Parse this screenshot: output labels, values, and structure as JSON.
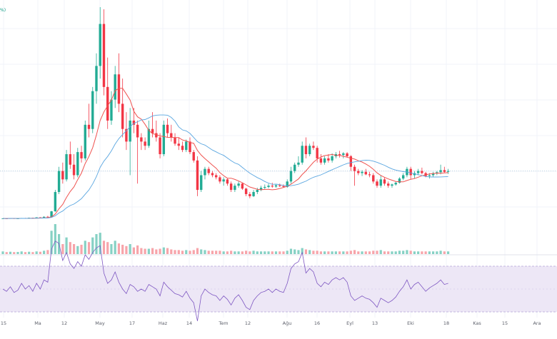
{
  "pct_badge": "%)",
  "colors": {
    "up": "#22ab94",
    "down": "#f23645",
    "vol_up": "#86d1c4",
    "vol_down": "#f7a4aa",
    "ma_fast": "#ef5350",
    "ma_slow": "#5aa6e0",
    "rsi_line": "#7e57c2",
    "rsi_band": "#ede7f6",
    "grid": "#f0f3fa",
    "badge": "#089981"
  },
  "chart_data": {
    "type": "candlestick",
    "title": "",
    "x_axis_labels": [
      "15",
      "Ma",
      "12",
      "May",
      "17",
      "Haz",
      "14",
      "Tem",
      "12",
      "Ağu",
      "16",
      "Eyl",
      "13",
      "Eki",
      "18",
      "Kas",
      "15",
      "Ara"
    ],
    "candles": [
      [
        0.27,
        0.275,
        0.265,
        0.27
      ],
      [
        0.27,
        0.275,
        0.262,
        0.268
      ],
      [
        0.268,
        0.28,
        0.265,
        0.276
      ],
      [
        0.276,
        0.278,
        0.26,
        0.265
      ],
      [
        0.265,
        0.272,
        0.258,
        0.27
      ],
      [
        0.27,
        0.282,
        0.266,
        0.279
      ],
      [
        0.279,
        0.285,
        0.27,
        0.274
      ],
      [
        0.274,
        0.29,
        0.272,
        0.286
      ],
      [
        0.286,
        0.288,
        0.276,
        0.28
      ],
      [
        0.28,
        0.3,
        0.278,
        0.296
      ],
      [
        0.296,
        0.3,
        0.284,
        0.29
      ],
      [
        0.29,
        0.32,
        0.286,
        0.31
      ],
      [
        0.31,
        0.33,
        0.3,
        0.305
      ],
      [
        0.305,
        0.45,
        0.3,
        0.44
      ],
      [
        0.44,
        0.95,
        0.43,
        0.9
      ],
      [
        0.9,
        1.5,
        0.85,
        1.4
      ],
      [
        1.4,
        1.6,
        1.1,
        1.2
      ],
      [
        1.2,
        1.9,
        1.15,
        1.8
      ],
      [
        1.8,
        2.1,
        1.45,
        1.55
      ],
      [
        1.55,
        1.8,
        1.2,
        1.3
      ],
      [
        1.3,
        1.95,
        1.25,
        1.85
      ],
      [
        1.85,
        2.0,
        1.6,
        1.7
      ],
      [
        1.7,
        2.6,
        1.65,
        2.5
      ],
      [
        2.5,
        3.0,
        2.2,
        2.4
      ],
      [
        2.4,
        3.4,
        2.3,
        3.3
      ],
      [
        3.3,
        4.2,
        3.0,
        3.9
      ],
      [
        3.9,
        5.3,
        3.6,
        4.9
      ],
      [
        4.9,
        5.25,
        3.2,
        3.4
      ],
      [
        3.4,
        4.1,
        2.4,
        2.6
      ],
      [
        2.6,
        3.3,
        2.5,
        3.1
      ],
      [
        3.1,
        3.9,
        2.9,
        3.7
      ],
      [
        3.7,
        4.2,
        2.8,
        3.0
      ],
      [
        3.0,
        3.6,
        2.2,
        2.4
      ],
      [
        2.4,
        2.8,
        1.9,
        2.1
      ],
      [
        2.1,
        2.9,
        1.3,
        2.6
      ],
      [
        2.6,
        2.9,
        2.3,
        2.5
      ],
      [
        2.5,
        2.6,
        1.1,
        2.2
      ],
      [
        2.2,
        2.3,
        1.9,
        2.1
      ],
      [
        2.1,
        2.2,
        1.9,
        2.0
      ],
      [
        2.0,
        2.6,
        1.95,
        2.4
      ],
      [
        2.4,
        2.8,
        2.2,
        2.3
      ],
      [
        2.3,
        2.6,
        2.1,
        2.2
      ],
      [
        2.2,
        2.3,
        1.7,
        1.8
      ],
      [
        1.8,
        2.6,
        1.75,
        2.5
      ],
      [
        2.5,
        2.65,
        2.2,
        2.3
      ],
      [
        2.3,
        2.5,
        2.1,
        2.2
      ],
      [
        2.2,
        2.3,
        2.0,
        2.05
      ],
      [
        2.05,
        2.2,
        1.9,
        2.0
      ],
      [
        2.0,
        2.1,
        1.85,
        1.9
      ],
      [
        1.9,
        2.15,
        1.85,
        2.1
      ],
      [
        2.1,
        2.2,
        1.8,
        1.85
      ],
      [
        1.85,
        1.9,
        1.6,
        1.65
      ],
      [
        1.65,
        1.75,
        0.8,
        0.95
      ],
      [
        0.95,
        1.4,
        0.9,
        1.3
      ],
      [
        1.3,
        1.5,
        1.2,
        1.45
      ],
      [
        1.45,
        1.5,
        1.3,
        1.35
      ],
      [
        1.35,
        1.4,
        1.25,
        1.3
      ],
      [
        1.3,
        1.35,
        1.2,
        1.25
      ],
      [
        1.25,
        1.3,
        1.1,
        1.15
      ],
      [
        1.15,
        1.25,
        1.05,
        1.2
      ],
      [
        1.2,
        1.22,
        1.05,
        1.1
      ],
      [
        1.1,
        1.15,
        0.9,
        0.95
      ],
      [
        0.95,
        1.1,
        0.9,
        1.05
      ],
      [
        1.05,
        1.15,
        1.0,
        1.1
      ],
      [
        1.1,
        1.12,
        0.95,
        0.98
      ],
      [
        0.98,
        1.0,
        0.8,
        0.85
      ],
      [
        0.85,
        0.9,
        0.75,
        0.8
      ],
      [
        0.8,
        0.95,
        0.78,
        0.9
      ],
      [
        0.9,
        1.0,
        0.85,
        0.95
      ],
      [
        0.95,
        1.05,
        0.92,
        1.0
      ],
      [
        1.0,
        1.08,
        0.97,
        1.02
      ],
      [
        1.02,
        1.1,
        0.99,
        1.05
      ],
      [
        1.05,
        1.12,
        1.0,
        1.03
      ],
      [
        1.03,
        1.08,
        1.0,
        1.06
      ],
      [
        1.06,
        1.1,
        1.02,
        1.04
      ],
      [
        1.04,
        1.08,
        1.0,
        1.02
      ],
      [
        1.02,
        1.2,
        1.0,
        1.15
      ],
      [
        1.15,
        1.5,
        1.1,
        1.4
      ],
      [
        1.4,
        1.6,
        1.35,
        1.55
      ],
      [
        1.55,
        1.75,
        1.5,
        1.6
      ],
      [
        1.6,
        2.1,
        1.55,
        2.0
      ],
      [
        2.0,
        2.2,
        1.7,
        1.8
      ],
      [
        1.8,
        2.05,
        1.75,
        2.0
      ],
      [
        2.0,
        2.1,
        1.9,
        1.95
      ],
      [
        1.95,
        2.0,
        1.6,
        1.7
      ],
      [
        1.7,
        1.8,
        1.55,
        1.6
      ],
      [
        1.6,
        1.75,
        1.55,
        1.7
      ],
      [
        1.7,
        1.8,
        1.6,
        1.65
      ],
      [
        1.65,
        1.82,
        1.6,
        1.75
      ],
      [
        1.75,
        1.85,
        1.7,
        1.8
      ],
      [
        1.8,
        1.88,
        1.72,
        1.78
      ],
      [
        1.78,
        1.85,
        1.7,
        1.82
      ],
      [
        1.82,
        1.85,
        1.72,
        1.75
      ],
      [
        1.75,
        1.78,
        1.4,
        1.5
      ],
      [
        1.5,
        1.55,
        1.05,
        1.4
      ],
      [
        1.4,
        1.45,
        1.3,
        1.35
      ],
      [
        1.35,
        1.42,
        1.28,
        1.38
      ],
      [
        1.38,
        1.45,
        1.3,
        1.32
      ],
      [
        1.32,
        1.38,
        1.25,
        1.3
      ],
      [
        1.3,
        1.35,
        1.1,
        1.15
      ],
      [
        1.15,
        1.2,
        1.0,
        1.05
      ],
      [
        1.05,
        1.3,
        1.0,
        1.2
      ],
      [
        1.2,
        1.25,
        1.05,
        1.1
      ],
      [
        1.1,
        1.15,
        1.0,
        1.05
      ],
      [
        1.05,
        1.1,
        1.0,
        1.08
      ],
      [
        1.08,
        1.15,
        1.05,
        1.12
      ],
      [
        1.12,
        1.25,
        1.1,
        1.22
      ],
      [
        1.22,
        1.35,
        1.18,
        1.3
      ],
      [
        1.3,
        1.5,
        1.25,
        1.45
      ],
      [
        1.45,
        1.5,
        1.2,
        1.3
      ],
      [
        1.3,
        1.4,
        1.22,
        1.35
      ],
      [
        1.35,
        1.45,
        1.3,
        1.4
      ],
      [
        1.4,
        1.48,
        1.32,
        1.35
      ],
      [
        1.35,
        1.38,
        1.25,
        1.28
      ],
      [
        1.28,
        1.35,
        1.22,
        1.3
      ],
      [
        1.3,
        1.38,
        1.26,
        1.34
      ],
      [
        1.34,
        1.4,
        1.3,
        1.37
      ],
      [
        1.37,
        1.55,
        1.32,
        1.42
      ],
      [
        1.42,
        1.5,
        1.35,
        1.38
      ],
      [
        1.38,
        1.45,
        1.33,
        1.4
      ]
    ],
    "volume": [
      0.4,
      0.3,
      0.35,
      0.3,
      0.32,
      0.4,
      0.3,
      0.35,
      0.3,
      0.4,
      0.35,
      0.5,
      0.6,
      3.5,
      4.5,
      3.0,
      1.5,
      2.5,
      1.8,
      1.5,
      1.2,
      1.4,
      2.0,
      1.8,
      2.5,
      3.0,
      3.2,
      2.0,
      1.8,
      1.5,
      2.0,
      1.6,
      1.4,
      1.2,
      1.5,
      1.0,
      1.3,
      0.9,
      0.8,
      0.8,
      0.9,
      0.7,
      0.8,
      1.0,
      0.9,
      0.7,
      0.6,
      0.6,
      0.5,
      0.6,
      0.5,
      0.6,
      0.9,
      0.7,
      0.6,
      0.5,
      0.5,
      0.5,
      0.5,
      0.4,
      0.4,
      0.5,
      0.4,
      0.4,
      0.4,
      0.5,
      0.4,
      0.5,
      0.4,
      0.4,
      0.4,
      0.4,
      0.4,
      0.4,
      0.4,
      0.4,
      0.5,
      0.8,
      0.7,
      0.6,
      0.9,
      0.7,
      0.6,
      0.5,
      0.5,
      0.4,
      0.4,
      0.4,
      0.4,
      0.4,
      0.4,
      0.4,
      0.4,
      0.5,
      0.6,
      0.4,
      0.4,
      0.4,
      0.4,
      0.5,
      0.5,
      0.6,
      0.4,
      0.4,
      0.4,
      0.4,
      0.5,
      0.5,
      0.6,
      0.5,
      0.4,
      0.4,
      0.4,
      0.4,
      0.4,
      0.4,
      0.4,
      0.5,
      0.4,
      0.4
    ],
    "rsi": [
      50,
      48,
      52,
      47,
      49,
      55,
      50,
      53,
      48,
      55,
      50,
      58,
      56,
      85,
      92,
      90,
      75,
      82,
      72,
      68,
      74,
      70,
      80,
      76,
      82,
      86,
      88,
      64,
      55,
      58,
      65,
      56,
      50,
      46,
      54,
      52,
      48,
      50,
      48,
      54,
      52,
      50,
      44,
      56,
      52,
      49,
      46,
      45,
      43,
      48,
      42,
      38,
      22,
      44,
      50,
      47,
      45,
      44,
      40,
      44,
      41,
      36,
      42,
      45,
      40,
      34,
      32,
      40,
      44,
      47,
      48,
      50,
      47,
      50,
      48,
      47,
      55,
      68,
      72,
      74,
      82,
      64,
      68,
      65,
      55,
      52,
      56,
      54,
      58,
      60,
      58,
      60,
      56,
      44,
      40,
      42,
      44,
      42,
      41,
      38,
      34,
      42,
      40,
      38,
      40,
      43,
      48,
      52,
      58,
      50,
      54,
      56,
      52,
      48,
      51,
      53,
      55,
      58,
      54,
      55
    ],
    "price_range_reference": [
      0,
      5.3
    ],
    "grid": true
  }
}
